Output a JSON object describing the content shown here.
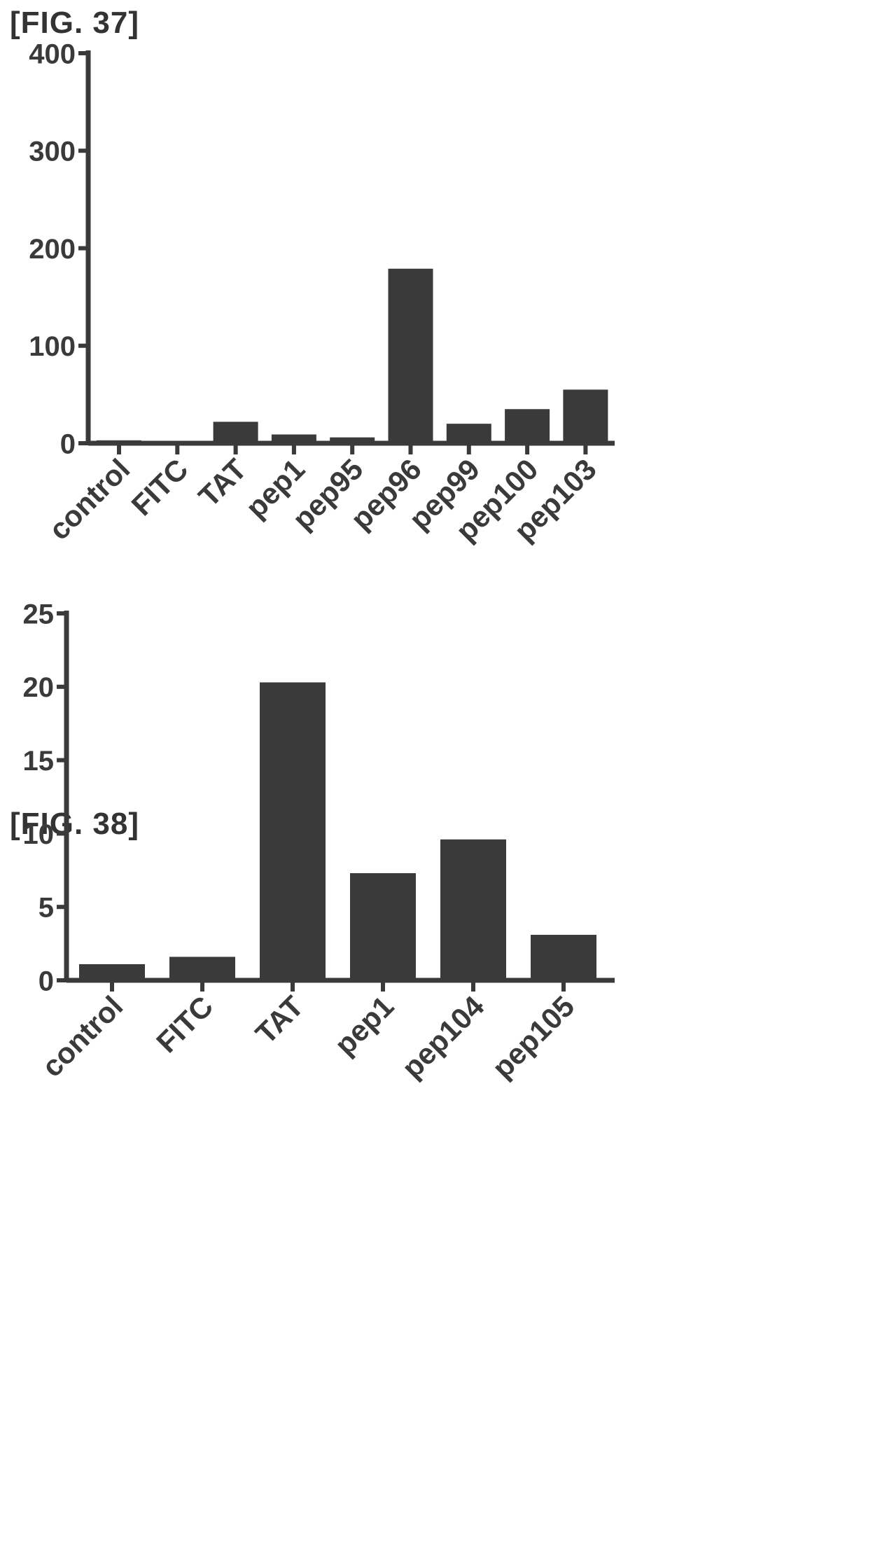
{
  "figures": [
    {
      "label": "[FIG. 37]",
      "chart_data": {
        "type": "bar",
        "categories": [
          "control",
          "FITC",
          "TAT",
          "pep1",
          "pep95",
          "pep96",
          "pep99",
          "pep100",
          "pep103"
        ],
        "values": [
          3,
          2,
          22,
          9,
          6,
          179,
          20,
          35,
          55
        ],
        "title": "",
        "xlabel": "",
        "ylabel": "",
        "ylim": [
          0,
          400
        ],
        "yticks": [
          "0",
          "100",
          "200",
          "300",
          "400"
        ],
        "grid": false,
        "legend": "none"
      }
    },
    {
      "label": "[FIG. 38]",
      "chart_data": {
        "type": "bar",
        "categories": [
          "control",
          "FITC",
          "TAT",
          "pep1",
          "pep104",
          "pep105"
        ],
        "values": [
          1.1,
          1.6,
          20.3,
          7.3,
          9.6,
          3.1
        ],
        "title": "",
        "xlabel": "",
        "ylabel": "",
        "ylim": [
          0,
          25
        ],
        "yticks": [
          "0",
          "5",
          "10",
          "15",
          "20",
          "25"
        ],
        "grid": false,
        "legend": "none"
      }
    }
  ],
  "colors": {
    "bar": "#3a3a3a",
    "axis": "#3a3a3a",
    "text": "#3a3a3a"
  }
}
